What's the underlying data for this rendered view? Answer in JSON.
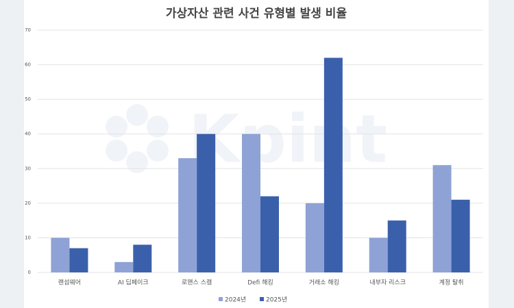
{
  "chart_data": {
    "type": "bar",
    "title": "가상자산 관련 사건 유형별 발생 비율",
    "watermark": "Kpint",
    "categories": [
      "랜섬웨어",
      "AI 딥페이크",
      "로맨스 스캠",
      "Defi 해킹",
      "거래소 해킹",
      "내부자 리스크",
      "계정 탈취"
    ],
    "series": [
      {
        "name": "2024년",
        "color": "#8fa2d5",
        "values": [
          10,
          3,
          33,
          40,
          20,
          10,
          31
        ]
      },
      {
        "name": "2025년",
        "color": "#3b60ab",
        "values": [
          7,
          8,
          40,
          22,
          62,
          15,
          21
        ]
      }
    ],
    "ylim": [
      0,
      70
    ],
    "yticks": [
      0,
      10,
      20,
      30,
      40,
      50,
      60,
      70
    ],
    "grid": true,
    "legend": "bottom"
  }
}
